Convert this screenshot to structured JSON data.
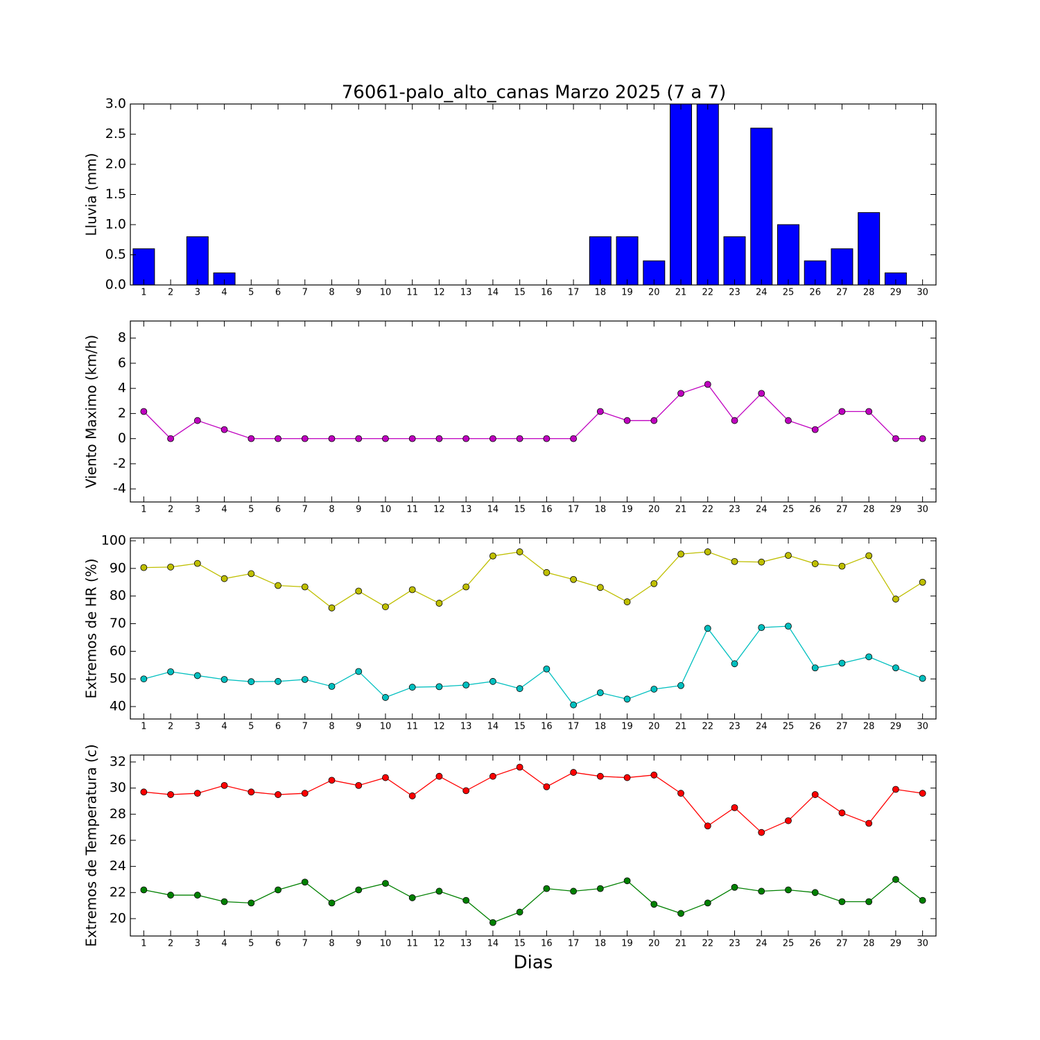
{
  "chart_data": [
    {
      "type": "bar",
      "title": "76061-palo_alto_canas Marzo 2025  (7 a 7)",
      "ylabel": "Lluvia (mm)",
      "categories": [
        1,
        2,
        3,
        4,
        5,
        6,
        7,
        8,
        9,
        10,
        11,
        12,
        13,
        14,
        15,
        16,
        17,
        18,
        19,
        20,
        21,
        22,
        23,
        24,
        25,
        26,
        27,
        28,
        29,
        30
      ],
      "values": [
        0.6,
        0,
        0.8,
        0.2,
        0,
        0,
        0,
        0,
        0,
        0,
        0,
        0,
        0,
        0,
        0,
        0,
        0,
        0.8,
        0.8,
        0.4,
        3.0,
        3.0,
        0.8,
        2.6,
        1.0,
        0.4,
        0.6,
        1.2,
        0.2,
        0
      ],
      "color": "#0000ff",
      "ylim": [
        0,
        3
      ],
      "yticks": [
        {
          "value": 0,
          "label": "0.0"
        },
        0.5,
        {
          "value": 1,
          "label": "1.0"
        },
        1.5,
        {
          "value": 2,
          "label": "2.0"
        },
        2.5,
        {
          "value": 3,
          "label": "3.0"
        }
      ]
    },
    {
      "type": "line",
      "ylabel": "Viento Maximo (km/h)",
      "categories": [
        1,
        2,
        3,
        4,
        5,
        6,
        7,
        8,
        9,
        10,
        11,
        12,
        13,
        14,
        15,
        16,
        17,
        18,
        19,
        20,
        21,
        22,
        23,
        24,
        25,
        26,
        27,
        28,
        29,
        30
      ],
      "series": [
        {
          "color": "#bf00bf",
          "values": [
            2.16,
            0,
            1.44,
            0.72,
            0,
            0,
            0,
            0,
            0,
            0,
            0,
            0,
            0,
            0,
            0,
            0,
            0,
            2.16,
            1.44,
            1.44,
            3.6,
            4.32,
            1.44,
            3.6,
            1.44,
            0.72,
            2.16,
            2.16,
            0,
            0
          ]
        }
      ],
      "ylim": [
        -5.04,
        9.36
      ],
      "yticks": [
        -4,
        -2,
        0,
        2,
        4,
        6,
        8
      ]
    },
    {
      "type": "line",
      "ylabel": "Extremos de HR (%)",
      "categories": [
        1,
        2,
        3,
        4,
        5,
        6,
        7,
        8,
        9,
        10,
        11,
        12,
        13,
        14,
        15,
        16,
        17,
        18,
        19,
        20,
        21,
        22,
        23,
        24,
        25,
        26,
        27,
        28,
        29,
        30
      ],
      "series": [
        {
          "color": "#bfbf00",
          "values": [
            90.3,
            90.5,
            91.8,
            86.3,
            88.1,
            83.8,
            83.3,
            75.7,
            81.8,
            76.1,
            82.3,
            77.4,
            83.3,
            94.5,
            96,
            88.5,
            86,
            83.1,
            77.9,
            84.5,
            95.2,
            96,
            92.5,
            92.3,
            94.7,
            91.7,
            90.8,
            94.6,
            78.9,
            85
          ]
        },
        {
          "color": "#00bfbf",
          "values": [
            50,
            52.6,
            51.2,
            49.8,
            49,
            49.1,
            49.8,
            47.3,
            52.7,
            43.3,
            47,
            47.2,
            47.8,
            49.1,
            46.5,
            53.6,
            40.6,
            45,
            42.7,
            46.3,
            47.6,
            68.3,
            55.5,
            68.6,
            69.1,
            54,
            55.7,
            58,
            54,
            50.2
          ]
        }
      ],
      "ylim": [
        35.5,
        101
      ],
      "yticks": [
        40,
        50,
        60,
        70,
        80,
        90,
        100
      ]
    },
    {
      "type": "line",
      "ylabel": "Extremos de Temperatura (c)",
      "xlabel": "Dias",
      "categories": [
        1,
        2,
        3,
        4,
        5,
        6,
        7,
        8,
        9,
        10,
        11,
        12,
        13,
        14,
        15,
        16,
        17,
        18,
        19,
        20,
        21,
        22,
        23,
        24,
        25,
        26,
        27,
        28,
        29,
        30
      ],
      "series": [
        {
          "color": "#ff0000",
          "values": [
            29.7,
            29.5,
            29.6,
            30.2,
            29.7,
            29.5,
            29.6,
            30.6,
            30.2,
            30.8,
            29.4,
            30.9,
            29.8,
            30.9,
            31.6,
            30.1,
            31.2,
            30.9,
            30.8,
            31,
            29.6,
            27.1,
            28.5,
            26.6,
            27.5,
            29.5,
            28.1,
            27.3,
            29.9,
            29.6
          ]
        },
        {
          "color": "#008000",
          "values": [
            22.2,
            21.8,
            21.8,
            21.3,
            21.2,
            22.2,
            22.8,
            21.2,
            22.2,
            22.7,
            21.6,
            22.1,
            21.4,
            19.7,
            20.5,
            22.3,
            22.1,
            22.3,
            22.9,
            21.1,
            20.4,
            21.2,
            22.4,
            22.1,
            22.2,
            22,
            21.3,
            21.3,
            23,
            21.4
          ]
        }
      ],
      "ylim": [
        18.67,
        32.53
      ],
      "yticks": [
        20,
        22,
        24,
        26,
        28,
        30,
        32
      ]
    }
  ]
}
